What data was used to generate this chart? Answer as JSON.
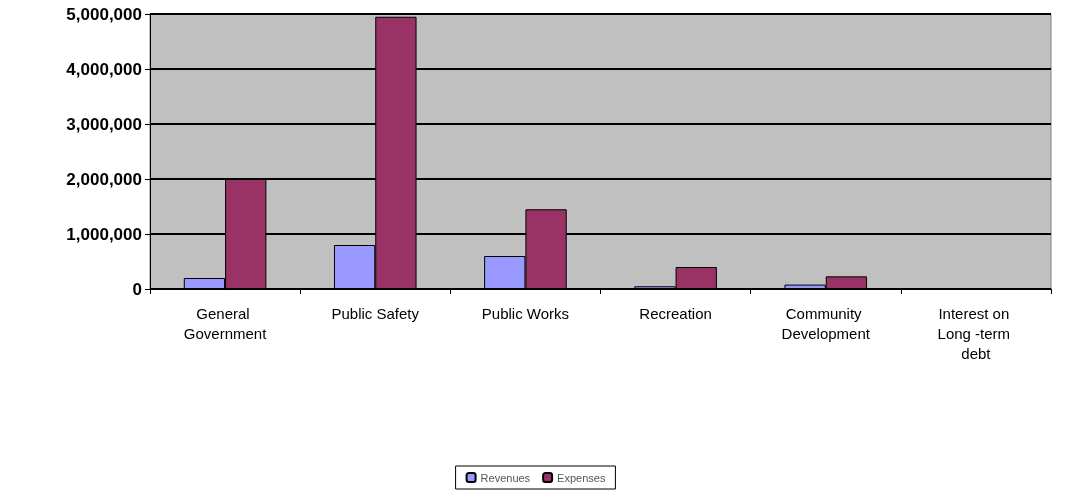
{
  "chart_data": {
    "type": "bar",
    "categories": [
      "General Government",
      "Public Safety",
      "Public Works",
      "Recreation",
      "Community Development",
      "Interest on Long -term debt"
    ],
    "series": [
      {
        "name": "Revenues",
        "color": "#9999ff",
        "values": [
          200000,
          800000,
          600000,
          50000,
          80000,
          0
        ]
      },
      {
        "name": "Expenses",
        "color": "#993366",
        "values": [
          2000000,
          4950000,
          1450000,
          400000,
          230000,
          0
        ]
      }
    ],
    "ylim": [
      0,
      5000000
    ],
    "yticks": [
      0,
      {
        "value": 1000000,
        "label": "1,000,000"
      },
      {
        "value": 2000000,
        "label": "2,000,000"
      },
      {
        "value": 3000000,
        "label": "3,000,000"
      },
      {
        "value": 4000000,
        "label": "4,000,000"
      },
      {
        "value": 5000000,
        "label": "5,000,000"
      }
    ],
    "grid": "y",
    "legend": "bottom"
  }
}
